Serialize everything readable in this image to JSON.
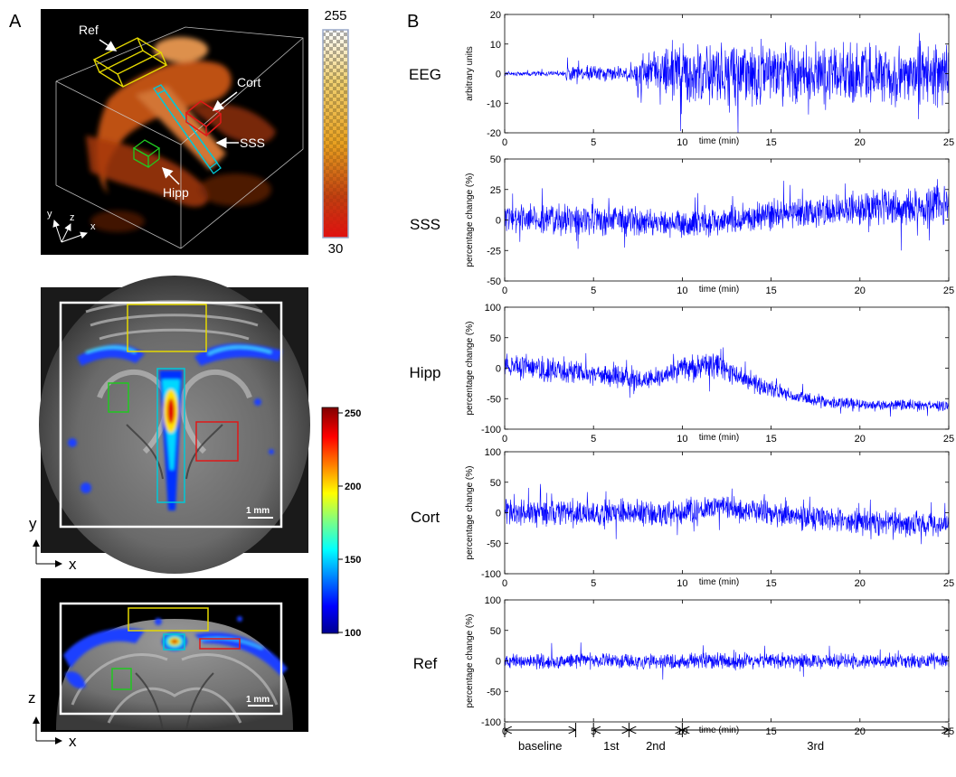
{
  "panel_labels": {
    "a": "A",
    "b": "B"
  },
  "panel_a": {
    "volume": {
      "colorbar_max": "255",
      "colorbar_min": "30",
      "labels": {
        "ref": "Ref",
        "cort": "Cort",
        "sss": "SSS",
        "hipp": "Hipp"
      },
      "axes": {
        "y": "y",
        "z": "z",
        "x": "x"
      }
    },
    "axial": {
      "axis_y": "y",
      "axis_x": "x",
      "scalebar": "1 mm"
    },
    "coronal": {
      "axis_z": "z",
      "axis_x": "x",
      "scalebar": "1 mm"
    },
    "colorbar": {
      "ticks": [
        "250",
        "200",
        "150",
        "100"
      ]
    },
    "roi_colors": {
      "ref": "#e5d800",
      "sss": "#00c8d8",
      "hipp": "#20c820",
      "cort": "#e01818"
    }
  },
  "panel_b": {
    "trace_color": "#0000ff",
    "xlabel": "time (min)",
    "x_ticks": [
      "0",
      "5",
      "10",
      "15",
      "20",
      "25"
    ],
    "phases": [
      "baseline",
      "1st",
      "2nd",
      "3rd"
    ]
  },
  "chart_data": [
    {
      "type": "line",
      "row_label": "EEG",
      "ylabel": "arbitrary units",
      "xlabel": "time (min)",
      "xlim": [
        0,
        25
      ],
      "ylim": [
        -20,
        20
      ],
      "y_ticks": [
        "20",
        "10",
        "0",
        "-10",
        "-20"
      ],
      "profile": {
        "x": [
          0,
          3.4,
          3.5,
          7.2,
          7.6,
          9.5,
          10.5,
          25
        ],
        "amp": [
          0.9,
          0.9,
          3,
          3,
          7,
          11,
          13,
          11
        ]
      }
    },
    {
      "type": "line",
      "row_label": "SSS",
      "ylabel": "percentage change (%)",
      "xlabel": "time (min)",
      "xlim": [
        0,
        25
      ],
      "ylim": [
        -50,
        50
      ],
      "y_ticks": [
        "50",
        "25",
        "0",
        "-25",
        "-50"
      ],
      "profile": {
        "x": [
          0,
          5,
          10,
          13,
          20,
          25
        ],
        "mean": [
          2,
          0,
          -3,
          0,
          10,
          12
        ],
        "amp": [
          14,
          14,
          13,
          14,
          17,
          18
        ]
      }
    },
    {
      "type": "line",
      "row_label": "Hipp",
      "ylabel": "percentage change (%)",
      "xlabel": "time (min)",
      "xlim": [
        0,
        25
      ],
      "ylim": [
        -100,
        100
      ],
      "y_ticks": [
        "100",
        "50",
        "0",
        "-50",
        "-100"
      ],
      "profile": {
        "x": [
          0,
          5,
          8,
          10,
          12,
          14,
          16,
          18,
          20,
          25
        ],
        "mean": [
          5,
          -10,
          -20,
          0,
          5,
          -25,
          -45,
          -55,
          -60,
          -62
        ],
        "amp": [
          25,
          20,
          20,
          25,
          25,
          18,
          15,
          12,
          12,
          10
        ]
      }
    },
    {
      "type": "line",
      "row_label": "Cort",
      "ylabel": "percentage change (%)",
      "xlabel": "time (min)",
      "xlim": [
        0,
        25
      ],
      "ylim": [
        -100,
        100
      ],
      "y_ticks": [
        "100",
        "50",
        "0",
        "-50",
        "-100"
      ],
      "profile": {
        "x": [
          0,
          5,
          10,
          12,
          15,
          20,
          25
        ],
        "mean": [
          0,
          0,
          0,
          10,
          0,
          -15,
          -20
        ],
        "amp": [
          25,
          25,
          25,
          25,
          25,
          25,
          22
        ]
      }
    },
    {
      "type": "line",
      "row_label": "Ref",
      "ylabel": "percentage change (%)",
      "xlabel": "time (min)",
      "xlim": [
        0,
        25
      ],
      "ylim": [
        -100,
        100
      ],
      "y_ticks": [
        "100",
        "50",
        "0",
        "-50",
        "-100"
      ],
      "profile": {
        "x": [
          0,
          25
        ],
        "mean": [
          0,
          0
        ],
        "amp": [
          15,
          15
        ]
      }
    }
  ]
}
